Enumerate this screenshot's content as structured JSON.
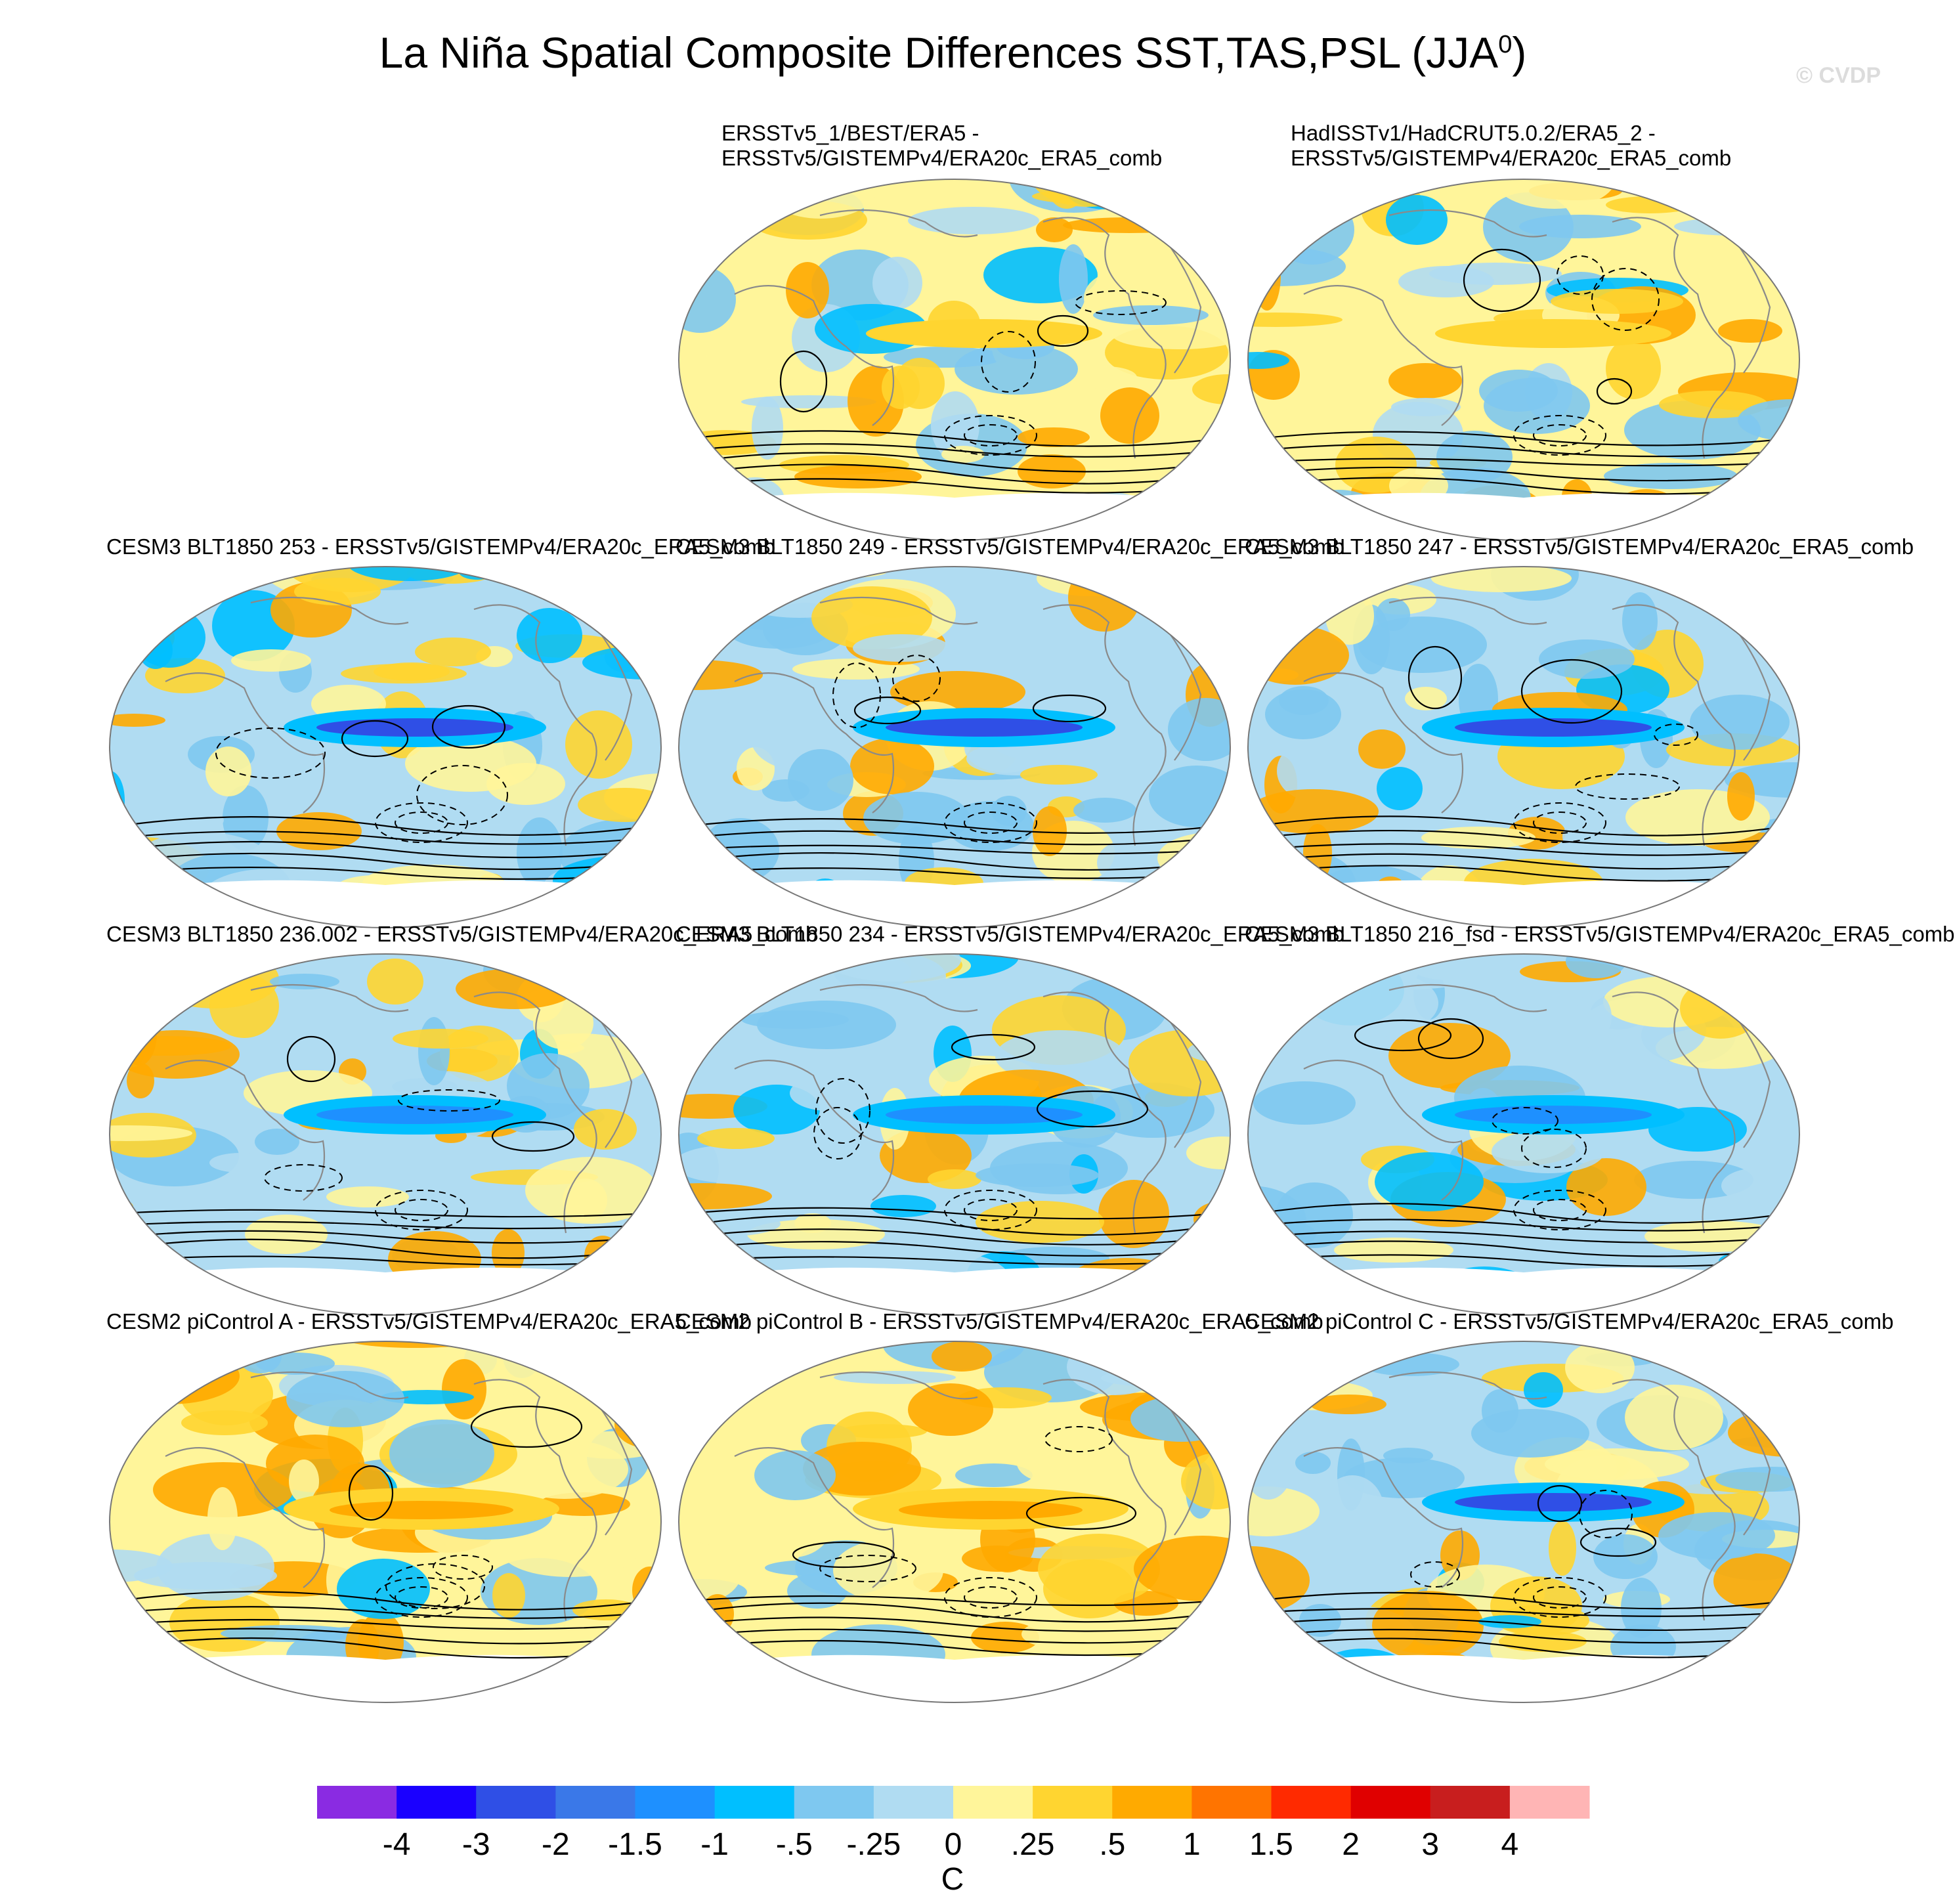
{
  "title": "La Niña Spatial Composite Differences SST,TAS,PSL (JJA",
  "title_superscript": "0",
  "title_end": ")",
  "watermark": "© CVDP",
  "panels": [
    {
      "id": "p1",
      "line1": "ERSSTv5_1/BEST/ERA5 -",
      "line2": "ERSSTv5/GISTEMPv4/ERA20c_ERA5_comb",
      "row": 0,
      "col": 1,
      "style": "warm-mix"
    },
    {
      "id": "p2",
      "line1": "HadISSTv1/HadCRUT5.0.2/ERA5_2 -",
      "line2": "ERSSTv5/GISTEMPv4/ERA20c_ERA5_comb",
      "row": 0,
      "col": 2,
      "style": "warm-mix"
    },
    {
      "id": "p3",
      "line1": "CESM3 BLT1850 253 - ERSSTv5/GISTEMPv4/ERA20c_ERA5_comb",
      "line2": "",
      "row": 1,
      "col": 0,
      "style": "lanina"
    },
    {
      "id": "p4",
      "line1": "CESM3 BLT1850 249 - ERSSTv5/GISTEMPv4/ERA20c_ERA5_comb",
      "line2": "",
      "row": 1,
      "col": 1,
      "style": "lanina"
    },
    {
      "id": "p5",
      "line1": "CESM3 BLT1850 247 - ERSSTv5/GISTEMPv4/ERA20c_ERA5_comb",
      "line2": "",
      "row": 1,
      "col": 2,
      "style": "lanina"
    },
    {
      "id": "p6",
      "line1": "CESM3 BLT1850 236.002 - ERSSTv5/GISTEMPv4/ERA20c_ERA5_comb",
      "line2": "",
      "row": 2,
      "col": 0,
      "style": "lanina-weak"
    },
    {
      "id": "p7",
      "line1": "CESM3 BLT1850 234 - ERSSTv5/GISTEMPv4/ERA20c_ERA5_comb",
      "line2": "",
      "row": 2,
      "col": 1,
      "style": "lanina-weak"
    },
    {
      "id": "p8",
      "line1": "CESM3 BLT1850 216_fsd - ERSSTv5/GISTEMPv4/ERA20c_ERA5_comb",
      "line2": "",
      "row": 2,
      "col": 2,
      "style": "lanina-weak"
    },
    {
      "id": "p9",
      "line1": "CESM2 piControl A - ERSSTv5/GISTEMPv4/ERA20c_ERA5_comb",
      "line2": "",
      "row": 3,
      "col": 0,
      "style": "warm"
    },
    {
      "id": "p10",
      "line1": "CESM2 piControl B - ERSSTv5/GISTEMPv4/ERA20c_ERA5_comb",
      "line2": "",
      "row": 3,
      "col": 1,
      "style": "warm"
    },
    {
      "id": "p11",
      "line1": "CESM2 piControl C - ERSSTv5/GISTEMPv4/ERA20c_ERA5_comb",
      "line2": "",
      "row": 3,
      "col": 2,
      "style": "lanina"
    }
  ],
  "colorbar": {
    "units": "C",
    "labels": [
      "-4",
      "-3",
      "-2",
      "-1.5",
      "-1",
      "-.5",
      "-.25",
      "0",
      ".25",
      ".5",
      "1",
      "1.5",
      "2",
      "3",
      "4"
    ],
    "colors": [
      "#8a2be2",
      "#1a00ff",
      "#2f4fe6",
      "#3a78e8",
      "#1e90ff",
      "#00bfff",
      "#7ec8f0",
      "#b0dcf2",
      "#fff59a",
      "#ffd530",
      "#ffaa00",
      "#ff7400",
      "#ff2a00",
      "#e00000",
      "#c81e1e",
      "#ffb5b5"
    ]
  }
}
